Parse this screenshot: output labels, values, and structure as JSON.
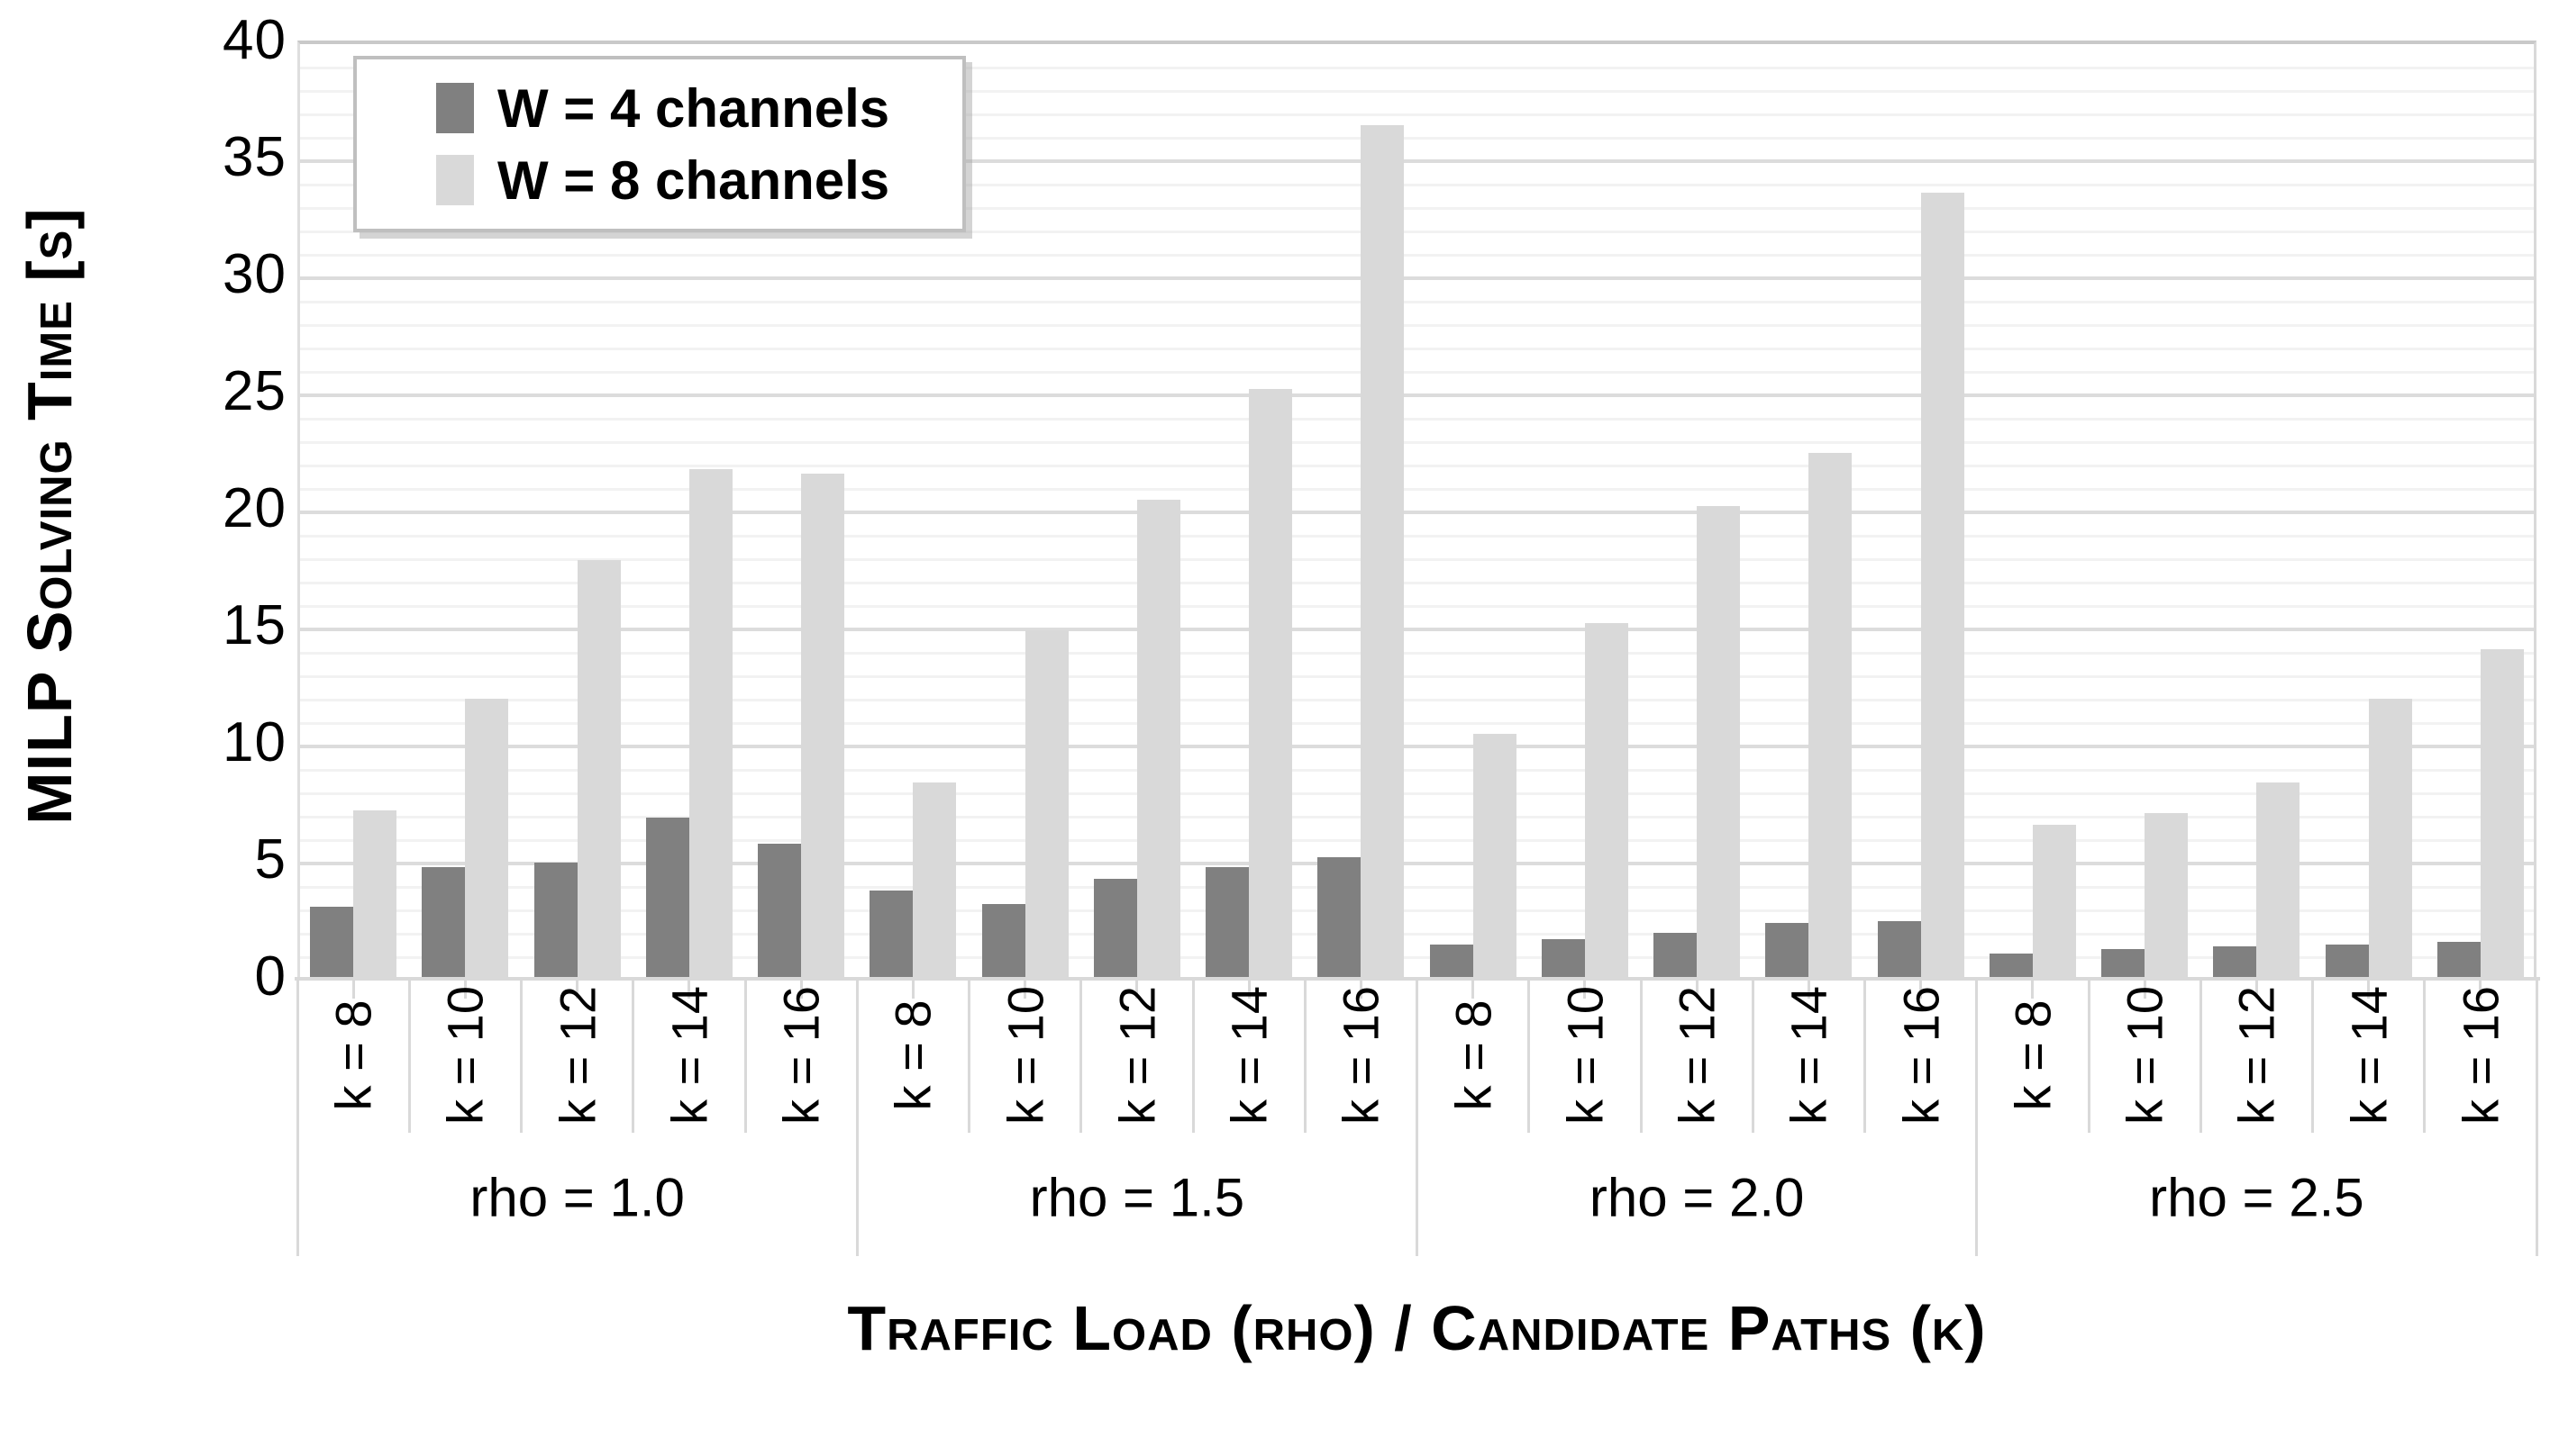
{
  "titles": {
    "x_axis": "Traffic Load (rho) / Candidate Paths (k)",
    "y_axis": "MILP Solving Time [s]"
  },
  "legend": {
    "items": [
      {
        "label": "W = 4 channels",
        "color": "#808080"
      },
      {
        "label": "W = 8 channels",
        "color": "#d9d9d9"
      }
    ]
  },
  "colors": {
    "w4_bar": "#808080",
    "w8_bar": "#d9d9d9",
    "major_grid": "#dcdcdc",
    "minor_grid": "#f2f2f2",
    "axis": "#d9d9d9"
  },
  "y_ticks": [
    "0",
    "5",
    "10",
    "15",
    "20",
    "25",
    "30",
    "35",
    "40"
  ],
  "chart_data": {
    "type": "bar",
    "title": "",
    "xlabel": "Traffic Load (rho) / Candidate Paths (k)",
    "ylabel": "MILP Solving Time [s]",
    "ylim": [
      0,
      40
    ],
    "y_major_step": 5,
    "y_minor_step": 1,
    "grid": "on",
    "legend_position": "top-left",
    "group_labels": [
      "rho = 1.0",
      "rho = 1.5",
      "rho = 2.0",
      "rho = 2.5"
    ],
    "k_labels": [
      "k = 8",
      "k = 10",
      "k = 12",
      "k = 14",
      "k = 16"
    ],
    "categories": [
      "rho = 1.0 / k = 8",
      "rho = 1.0 / k = 10",
      "rho = 1.0 / k = 12",
      "rho = 1.0 / k = 14",
      "rho = 1.0 / k = 16",
      "rho = 1.5 / k = 8",
      "rho = 1.5 / k = 10",
      "rho = 1.5 / k = 12",
      "rho = 1.5 / k = 14",
      "rho = 1.5 / k = 16",
      "rho = 2.0 / k = 8",
      "rho = 2.0 / k = 10",
      "rho = 2.0 / k = 12",
      "rho = 2.0 / k = 14",
      "rho = 2.0 / k = 16",
      "rho = 2.5 / k = 8",
      "rho = 2.5 / k = 10",
      "rho = 2.5 / k = 12",
      "rho = 2.5 / k = 14",
      "rho = 2.5 / k = 16"
    ],
    "series": [
      {
        "name": "W = 4 channels",
        "values": [
          3.0,
          4.7,
          4.9,
          6.8,
          5.7,
          3.7,
          3.1,
          4.2,
          4.7,
          5.1,
          1.4,
          1.6,
          1.9,
          2.3,
          2.4,
          1.0,
          1.2,
          1.3,
          1.4,
          1.5
        ]
      },
      {
        "name": "W = 8 channels",
        "values": [
          7.1,
          11.9,
          17.8,
          21.7,
          21.5,
          8.3,
          14.8,
          20.4,
          25.1,
          36.4,
          10.4,
          15.1,
          20.1,
          22.4,
          33.5,
          6.5,
          7.0,
          8.3,
          11.9,
          14.0
        ]
      }
    ]
  }
}
